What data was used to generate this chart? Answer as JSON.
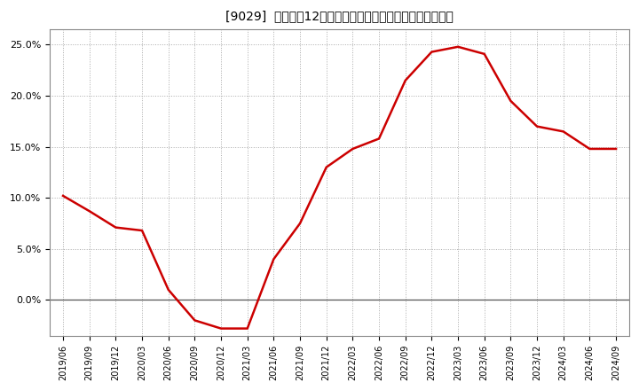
{
  "title": "[9029]  売上高の12か月移動合計の対前年同期増減率の推移",
  "x_labels": [
    "2019/06",
    "2019/09",
    "2019/12",
    "2020/03",
    "2020/06",
    "2020/09",
    "2020/12",
    "2021/03",
    "2021/06",
    "2021/09",
    "2021/12",
    "2022/03",
    "2022/06",
    "2022/09",
    "2022/12",
    "2023/03",
    "2023/06",
    "2023/09",
    "2023/12",
    "2024/03",
    "2024/06",
    "2024/09"
  ],
  "y_values": [
    0.102,
    0.087,
    0.071,
    0.068,
    0.01,
    -0.02,
    -0.028,
    -0.028,
    0.04,
    0.075,
    0.13,
    0.148,
    0.158,
    0.215,
    0.243,
    0.248,
    0.241,
    0.195,
    0.17,
    0.165,
    0.148,
    0.148
  ],
  "line_color": "#cc0000",
  "bg_color": "#ffffff",
  "plot_bg_color": "#ffffff",
  "grid_color": "#aaaaaa",
  "zero_line_color": "#555555",
  "ylim": [
    -0.035,
    0.265
  ],
  "yticks": [
    0.0,
    0.05,
    0.1,
    0.15,
    0.2,
    0.25
  ],
  "ytick_labels": [
    "0.0%",
    "5.0%",
    "10.0%",
    "15.0%",
    "20.0%",
    "25.0%"
  ]
}
